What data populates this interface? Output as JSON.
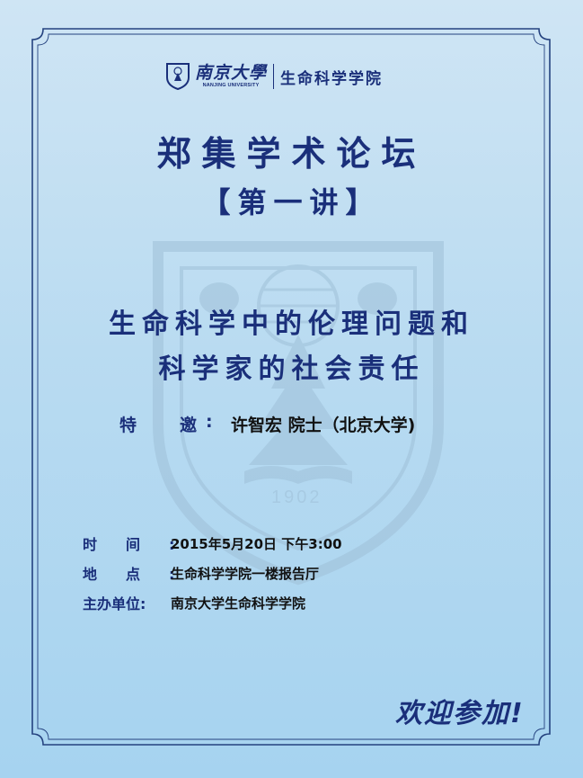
{
  "colors": {
    "navy": "#1a2f7a",
    "background": "#b9dbf1",
    "text_dark": "#111111"
  },
  "header": {
    "emblem_icon": "nanjing-university-emblem-icon",
    "university_name": "南京大學",
    "university_name_en": "NANJING UNIVERSITY",
    "school_name": "生命科学学院"
  },
  "forum_title": "郑集学术论坛",
  "lecture": "【第一讲】",
  "topic": {
    "line1": "生命科学中的伦理问题和",
    "line2": "科学家的社会责任"
  },
  "guest": {
    "label": "特邀",
    "colon": ":",
    "value": "许智宏  院士（北京大学)"
  },
  "watermark": {
    "icon": "nanjing-university-seal-watermark-icon",
    "year": "1902",
    "text": "NANJING UNIVERSITY"
  },
  "details": [
    {
      "label": "时间:",
      "value": "2015年5月20日 下午3:00"
    },
    {
      "label": "地点:",
      "value": "生命科学学院一楼报告厅"
    },
    {
      "label": "主办单位:",
      "value": "南京大学生命科学学院"
    }
  ],
  "closing": "欢迎参加!"
}
